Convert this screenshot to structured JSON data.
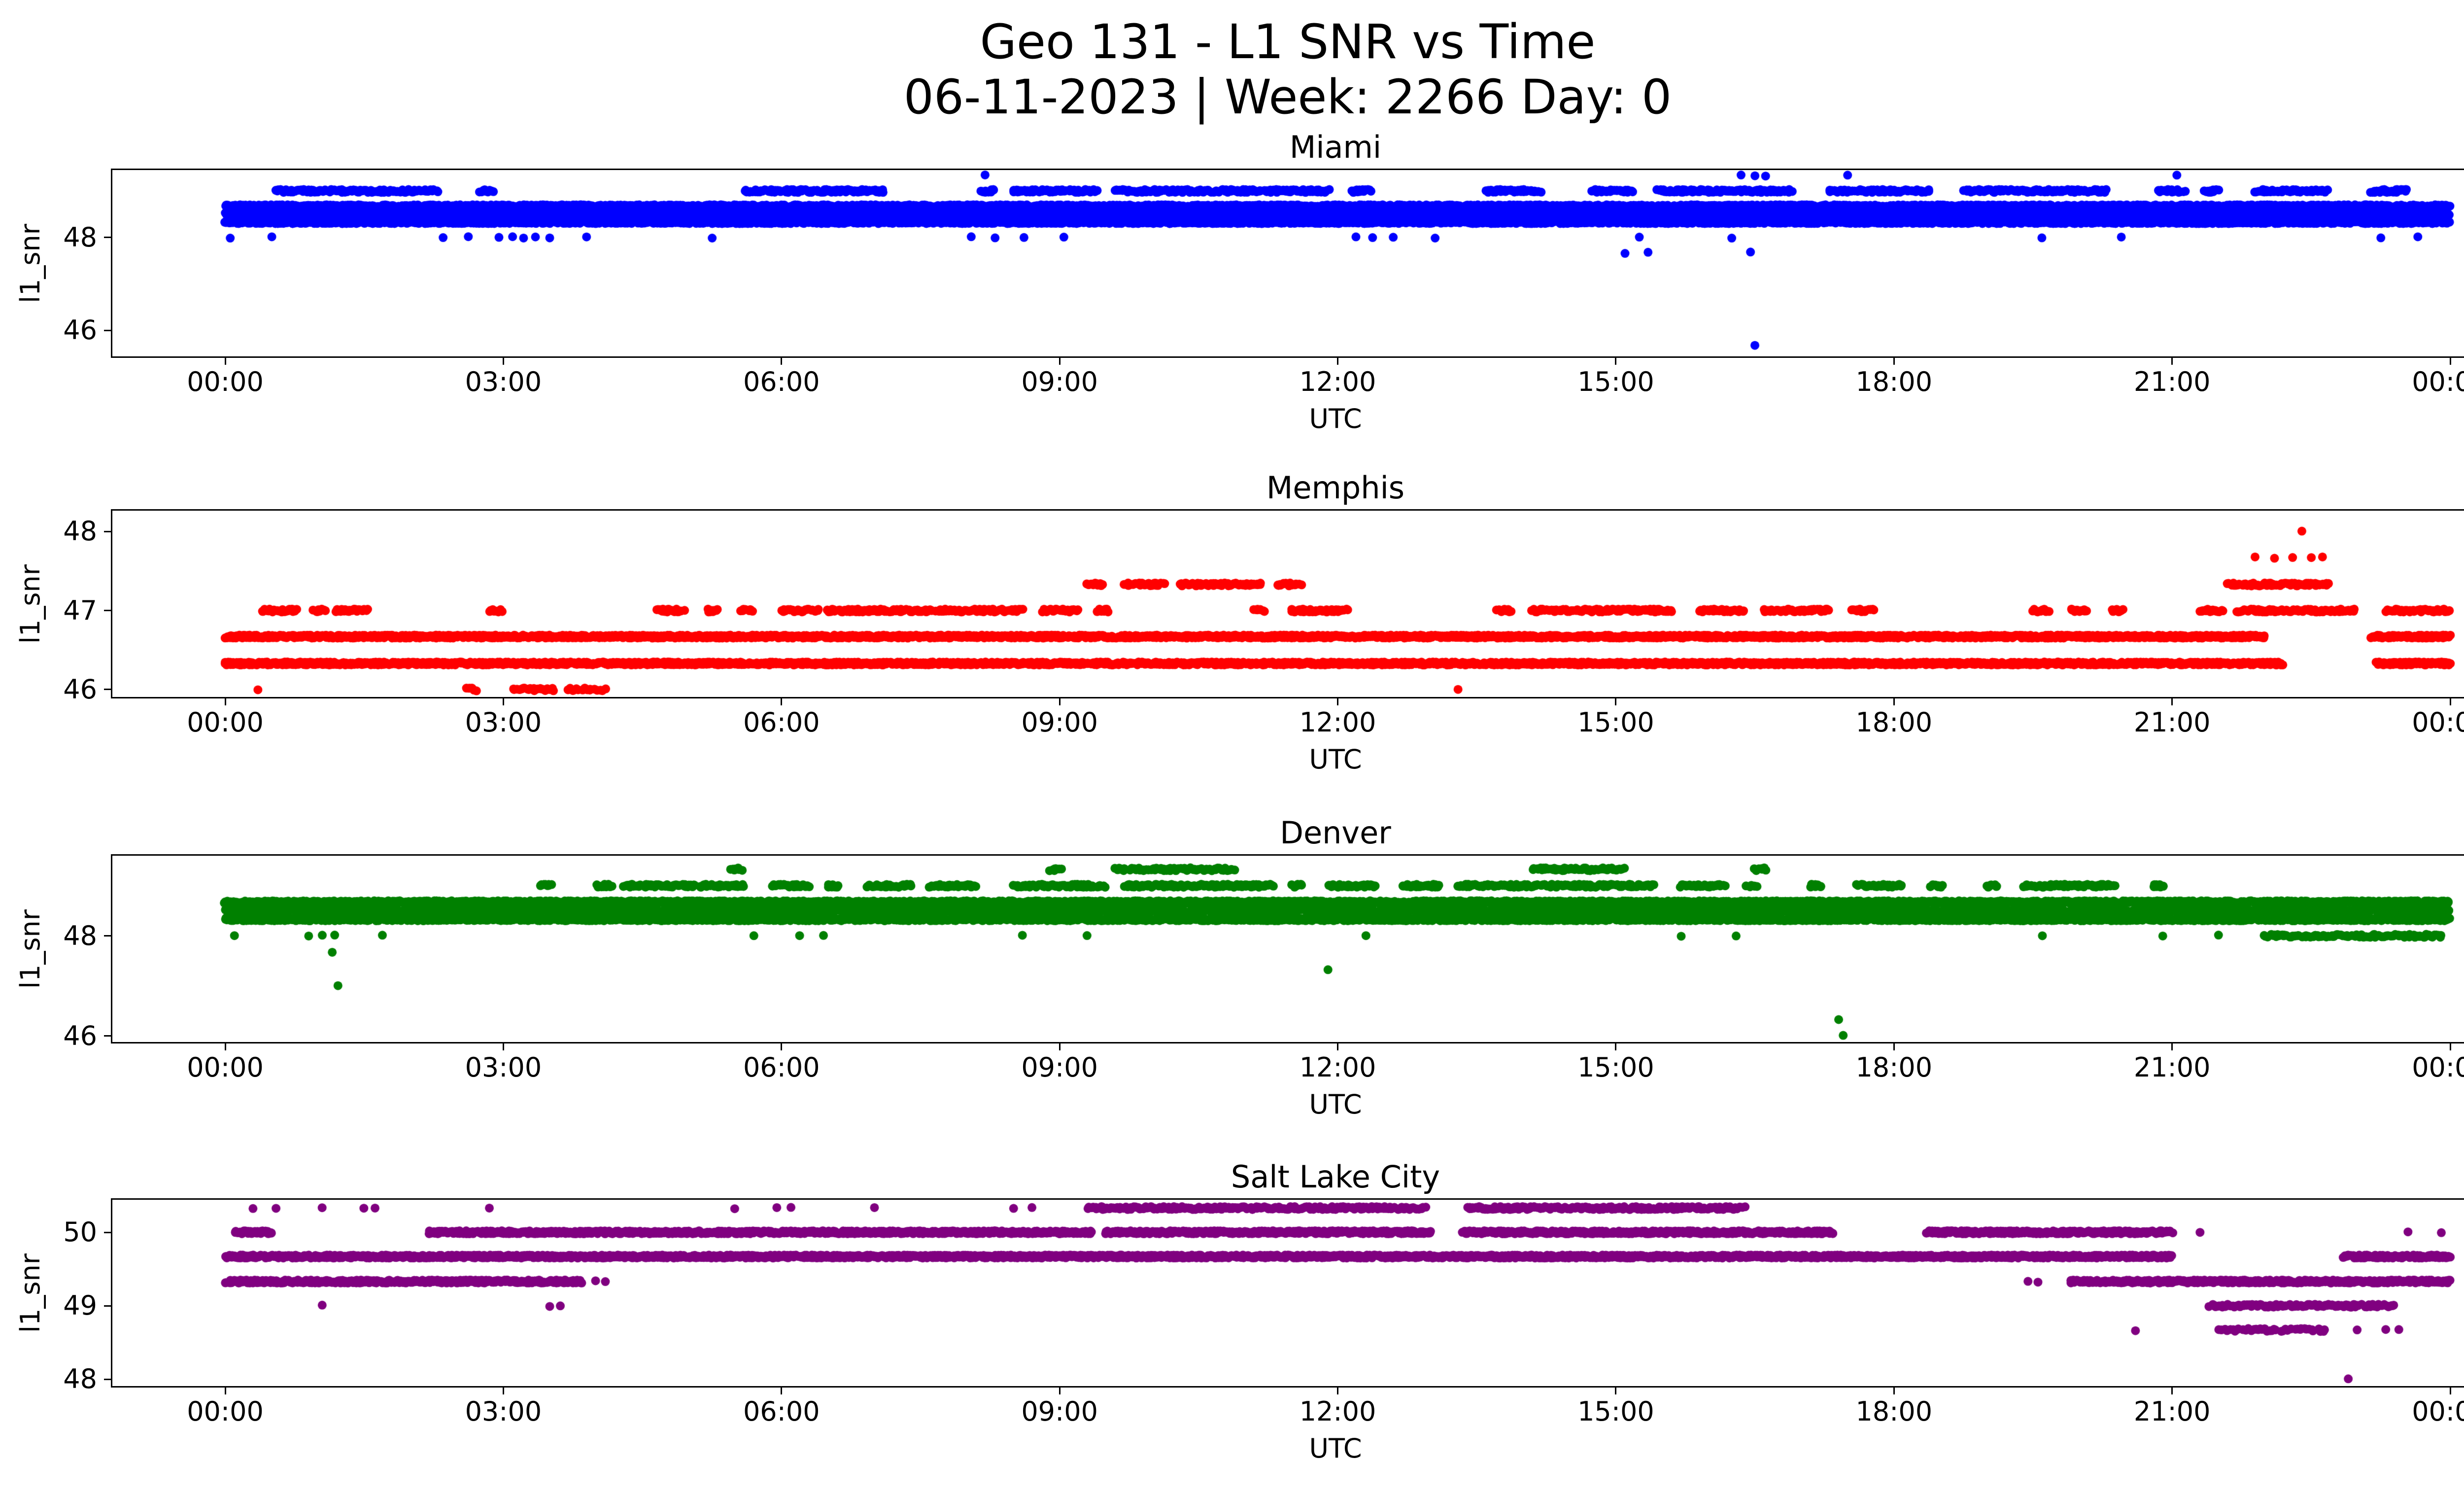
{
  "figure": {
    "title_line1": "Geo 131 - L1 SNR vs Time",
    "title_line2": "06-11-2023 | Week: 2266 Day: 0",
    "xlabel": "UTC",
    "ylabel": "l1_snr",
    "xtick_hours": [
      0,
      3,
      6,
      9,
      12,
      15,
      18,
      21,
      24
    ],
    "xtick_labels": [
      "00:00",
      "03:00",
      "06:00",
      "09:00",
      "12:00",
      "15:00",
      "18:00",
      "21:00",
      "00:00"
    ]
  },
  "chart_data": [
    {
      "type": "scatter",
      "title": "Miami",
      "color": "#0000ff",
      "xlabel": "UTC",
      "ylabel": "l1_snr",
      "x_range_hours": [
        0,
        24
      ],
      "ylim": [
        45.43,
        49.46
      ],
      "yticks": [
        46,
        48
      ],
      "grid": false,
      "legend": "none",
      "bands": [
        {
          "y": 48.33,
          "density": 130,
          "segments": [
            [
              0,
              24
            ]
          ]
        },
        {
          "y": 48.5,
          "density": 90,
          "segments": [
            [
              0,
              24
            ]
          ]
        },
        {
          "y": 48.67,
          "density": 130,
          "segments": [
            [
              0,
              24
            ]
          ]
        },
        {
          "y": 49.0,
          "density": 70,
          "segments": [
            [
              0.55,
              2.3
            ],
            [
              2.75,
              2.9
            ],
            [
              5.6,
              7.1
            ],
            [
              8.15,
              8.3
            ],
            [
              8.5,
              9.4
            ],
            [
              9.6,
              11.9
            ],
            [
              12.15,
              12.35
            ],
            [
              13.6,
              14.2
            ],
            [
              14.75,
              15.2
            ],
            [
              15.45,
              16.9
            ],
            [
              17.3,
              18.4
            ],
            [
              18.75,
              20.3
            ],
            [
              20.85,
              21.15
            ],
            [
              21.35,
              21.5
            ],
            [
              21.9,
              22.7
            ],
            [
              23.15,
              23.55
            ]
          ]
        }
      ],
      "points": [
        [
          8.2,
          49.33
        ],
        [
          16.35,
          49.33
        ],
        [
          16.5,
          49.33
        ],
        [
          16.62,
          49.33
        ],
        [
          17.5,
          49.33
        ],
        [
          21.05,
          49.33
        ],
        [
          0.05,
          48.0
        ],
        [
          0.5,
          48.0
        ],
        [
          2.35,
          48.0
        ],
        [
          2.62,
          48.0
        ],
        [
          2.95,
          48.0
        ],
        [
          3.1,
          48.0
        ],
        [
          3.22,
          48.0
        ],
        [
          3.35,
          48.0
        ],
        [
          3.5,
          48.0
        ],
        [
          3.9,
          48.0
        ],
        [
          5.25,
          48.0
        ],
        [
          8.05,
          48.0
        ],
        [
          8.3,
          48.0
        ],
        [
          8.62,
          48.0
        ],
        [
          9.05,
          48.0
        ],
        [
          12.2,
          48.0
        ],
        [
          12.38,
          48.0
        ],
        [
          12.6,
          48.0
        ],
        [
          13.05,
          48.0
        ],
        [
          15.25,
          48.0
        ],
        [
          16.25,
          48.0
        ],
        [
          19.6,
          48.0
        ],
        [
          20.45,
          48.0
        ],
        [
          23.25,
          48.0
        ],
        [
          23.65,
          48.0
        ],
        [
          15.1,
          47.67
        ],
        [
          15.35,
          47.67
        ],
        [
          16.45,
          47.67
        ],
        [
          16.5,
          45.67
        ]
      ]
    },
    {
      "type": "scatter",
      "title": "Memphis",
      "color": "#ff0000",
      "xlabel": "UTC",
      "ylabel": "l1_snr",
      "x_range_hours": [
        0,
        24
      ],
      "ylim": [
        45.9,
        48.27
      ],
      "yticks": [
        46,
        47,
        48
      ],
      "grid": false,
      "legend": "none",
      "bands": [
        {
          "y": 46.33,
          "density": 130,
          "segments": [
            [
              0,
              22.2
            ],
            [
              23.2,
              24
            ]
          ]
        },
        {
          "y": 46.67,
          "density": 130,
          "segments": [
            [
              0,
              22.0
            ],
            [
              23.15,
              24
            ]
          ]
        },
        {
          "y": 47.0,
          "density": 70,
          "segments": [
            [
              0.4,
              0.78
            ],
            [
              0.95,
              1.08
            ],
            [
              1.2,
              1.55
            ],
            [
              2.85,
              2.98
            ],
            [
              4.65,
              4.95
            ],
            [
              5.2,
              5.32
            ],
            [
              5.55,
              5.68
            ],
            [
              6.0,
              6.4
            ],
            [
              6.5,
              8.6
            ],
            [
              8.8,
              9.2
            ],
            [
              9.4,
              9.52
            ],
            [
              11.1,
              11.22
            ],
            [
              11.5,
              12.1
            ],
            [
              13.7,
              13.88
            ],
            [
              14.1,
              15.6
            ],
            [
              15.9,
              16.4
            ],
            [
              16.6,
              17.3
            ],
            [
              17.55,
              17.8
            ],
            [
              19.5,
              19.68
            ],
            [
              19.9,
              20.08
            ],
            [
              20.35,
              20.48
            ],
            [
              21.3,
              21.55
            ],
            [
              21.7,
              23.0
            ],
            [
              23.3,
              24.0
            ]
          ]
        },
        {
          "y": 47.33,
          "density": 70,
          "segments": [
            [
              9.3,
              9.48
            ],
            [
              9.7,
              10.15
            ],
            [
              10.3,
              11.2
            ],
            [
              11.35,
              11.62
            ],
            [
              21.6,
              22.7
            ]
          ]
        },
        {
          "y": 46.0,
          "density": 45,
          "segments": [
            [
              2.6,
              2.72
            ],
            [
              3.1,
              3.55
            ],
            [
              3.7,
              4.1
            ]
          ]
        }
      ],
      "points": [
        [
          21.9,
          47.67
        ],
        [
          22.1,
          47.67
        ],
        [
          22.3,
          47.67
        ],
        [
          22.5,
          47.67
        ],
        [
          22.62,
          47.67
        ],
        [
          22.4,
          48.0
        ],
        [
          13.3,
          46.0
        ],
        [
          0.35,
          46.0
        ]
      ]
    },
    {
      "type": "scatter",
      "title": "Denver",
      "color": "#008000",
      "xlabel": "UTC",
      "ylabel": "l1_snr",
      "x_range_hours": [
        0,
        24
      ],
      "ylim": [
        45.87,
        49.61
      ],
      "yticks": [
        46,
        48
      ],
      "grid": false,
      "legend": "none",
      "bands": [
        {
          "y": 48.33,
          "density": 130,
          "segments": [
            [
              0,
              24
            ]
          ]
        },
        {
          "y": 48.5,
          "density": 90,
          "segments": [
            [
              0,
              24
            ]
          ]
        },
        {
          "y": 48.67,
          "density": 130,
          "segments": [
            [
              0,
              24
            ]
          ]
        },
        {
          "y": 49.0,
          "density": 70,
          "segments": [
            [
              3.4,
              3.52
            ],
            [
              4.0,
              4.18
            ],
            [
              4.3,
              5.6
            ],
            [
              5.9,
              6.3
            ],
            [
              6.5,
              6.62
            ],
            [
              6.9,
              7.4
            ],
            [
              7.6,
              8.1
            ],
            [
              8.5,
              9.5
            ],
            [
              9.7,
              11.3
            ],
            [
              11.5,
              11.62
            ],
            [
              11.9,
              12.4
            ],
            [
              12.7,
              13.1
            ],
            [
              13.3,
              15.4
            ],
            [
              15.7,
              16.2
            ],
            [
              16.4,
              16.52
            ],
            [
              17.1,
              17.22
            ],
            [
              17.6,
              18.1
            ],
            [
              18.4,
              18.52
            ],
            [
              19.0,
              19.12
            ],
            [
              19.4,
              20.4
            ],
            [
              20.8,
              20.92
            ]
          ]
        },
        {
          "y": 49.33,
          "density": 60,
          "segments": [
            [
              5.45,
              5.58
            ],
            [
              8.9,
              9.02
            ],
            [
              9.6,
              10.9
            ],
            [
              14.1,
              15.1
            ],
            [
              16.5,
              16.62
            ]
          ]
        },
        {
          "y": 48.0,
          "density": 60,
          "segments": [
            [
              22.0,
              23.9
            ]
          ]
        }
      ],
      "points": [
        [
          0.1,
          48.0
        ],
        [
          0.9,
          48.0
        ],
        [
          1.05,
          48.0
        ],
        [
          1.18,
          48.0
        ],
        [
          1.7,
          48.0
        ],
        [
          5.7,
          48.0
        ],
        [
          6.2,
          48.0
        ],
        [
          6.45,
          48.0
        ],
        [
          8.6,
          48.0
        ],
        [
          9.3,
          48.0
        ],
        [
          12.3,
          48.0
        ],
        [
          15.7,
          48.0
        ],
        [
          16.3,
          48.0
        ],
        [
          19.6,
          48.0
        ],
        [
          20.9,
          48.0
        ],
        [
          21.5,
          48.0
        ],
        [
          1.15,
          47.67
        ],
        [
          1.22,
          47.0
        ],
        [
          11.9,
          47.33
        ],
        [
          17.4,
          46.33
        ],
        [
          17.45,
          46.0
        ]
      ]
    },
    {
      "type": "scatter",
      "title": "Salt Lake City",
      "color": "#800080",
      "xlabel": "UTC",
      "ylabel": "l1_snr",
      "x_range_hours": [
        0,
        24
      ],
      "ylim": [
        47.9,
        50.45
      ],
      "yticks": [
        48,
        49,
        50
      ],
      "grid": false,
      "legend": "none",
      "bands": [
        {
          "y": 49.67,
          "density": 130,
          "segments": [
            [
              0,
              21.0
            ],
            [
              22.85,
              24
            ]
          ]
        },
        {
          "y": 50.0,
          "density": 120,
          "segments": [
            [
              0.1,
              0.5
            ],
            [
              2.2,
              9.35
            ],
            [
              9.5,
              13.0
            ],
            [
              13.35,
              17.35
            ],
            [
              18.35,
              21.0
            ]
          ]
        },
        {
          "y": 50.33,
          "density": 70,
          "segments": [
            [
              9.3,
              12.95
            ],
            [
              13.4,
              16.4
            ]
          ]
        },
        {
          "y": 49.33,
          "density": 110,
          "segments": [
            [
              0,
              3.85
            ],
            [
              19.9,
              24
            ]
          ]
        },
        {
          "y": 49.0,
          "density": 60,
          "segments": [
            [
              21.4,
              23.4
            ]
          ]
        },
        {
          "y": 48.67,
          "density": 40,
          "segments": [
            [
              21.5,
              22.65
            ]
          ]
        }
      ],
      "points": [
        [
          0.3,
          50.33
        ],
        [
          0.55,
          50.33
        ],
        [
          1.05,
          50.33
        ],
        [
          1.5,
          50.33
        ],
        [
          1.62,
          50.33
        ],
        [
          2.85,
          50.33
        ],
        [
          5.5,
          50.33
        ],
        [
          5.95,
          50.33
        ],
        [
          6.1,
          50.33
        ],
        [
          7.0,
          50.33
        ],
        [
          8.5,
          50.33
        ],
        [
          8.7,
          50.33
        ],
        [
          1.05,
          49.0
        ],
        [
          3.5,
          49.0
        ],
        [
          3.62,
          49.0
        ],
        [
          4.0,
          49.33
        ],
        [
          4.1,
          49.33
        ],
        [
          19.45,
          49.33
        ],
        [
          19.55,
          49.33
        ],
        [
          20.6,
          48.67
        ],
        [
          23.0,
          48.67
        ],
        [
          23.3,
          48.67
        ],
        [
          23.45,
          48.67
        ],
        [
          22.9,
          48.0
        ],
        [
          21.3,
          50.0
        ],
        [
          23.55,
          50.0
        ],
        [
          23.9,
          50.0
        ]
      ]
    }
  ]
}
